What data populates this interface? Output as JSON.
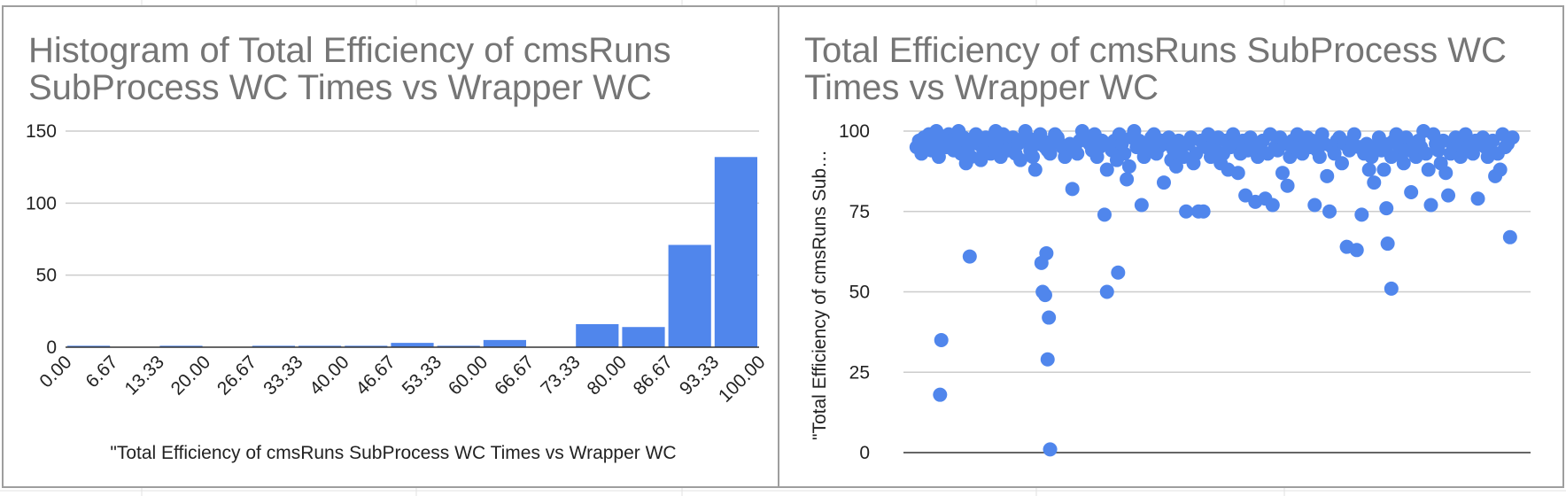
{
  "chart_data": [
    {
      "type": "bar",
      "title": "Histogram of Total Efficiency of cmsRuns SubProcess WC Times vs Wrapper WC",
      "xlabel": "\"Total Efficiency of cmsRuns SubProcess WC Times vs Wrapper WC",
      "ylabel": "",
      "ylim": [
        0,
        150
      ],
      "yticks": [
        "0",
        "50",
        "100",
        "150"
      ],
      "x_tick_labels": [
        "0.00",
        "6.67",
        "13.33",
        "20.00",
        "26.67",
        "33.33",
        "40.00",
        "46.67",
        "53.33",
        "60.00",
        "66.67",
        "73.33",
        "80.00",
        "86.67",
        "93.33",
        "100.00"
      ],
      "values": [
        1,
        0,
        1,
        0,
        1,
        1,
        1,
        3,
        1,
        5,
        0,
        16,
        14,
        71,
        132
      ],
      "bar_color": "#5086ec",
      "grid": true
    },
    {
      "type": "scatter",
      "title": "Total Efficiency of cmsRuns SubProcess WC Times vs Wrapper WC",
      "xlabel": "",
      "ylabel": "\"Total Efficiency of cmsRuns Sub…",
      "ylim": [
        0,
        100
      ],
      "yticks": [
        "0",
        "25",
        "50",
        "75",
        "100"
      ],
      "point_color": "#5086ec",
      "grid": true,
      "y": [
        95,
        97,
        93,
        98,
        96,
        99,
        94,
        97,
        100,
        92,
        96,
        98,
        95,
        99,
        97,
        94,
        96,
        100,
        93,
        98,
        90,
        95,
        92,
        97,
        99,
        96,
        91,
        94,
        98,
        95,
        93,
        97,
        100,
        96,
        92,
        99,
        95,
        94,
        97,
        98,
        93,
        96,
        91,
        97,
        100,
        98,
        94,
        92,
        88,
        96,
        99,
        97,
        95,
        94,
        93,
        97,
        99,
        98,
        96,
        95,
        92,
        94,
        96,
        82,
        95,
        93,
        97,
        100,
        98,
        97,
        96,
        94,
        99,
        92,
        95,
        97,
        74,
        88,
        96,
        94,
        97,
        91,
        99,
        96,
        93,
        85,
        89,
        98,
        100,
        95,
        97,
        77,
        92,
        96,
        94,
        98,
        99,
        93,
        95,
        97,
        84,
        96,
        98,
        91,
        94,
        89,
        97,
        95,
        92,
        75,
        96,
        98,
        90,
        93,
        75,
        97,
        75,
        95,
        99,
        92,
        96,
        94,
        98,
        90,
        93,
        97,
        88,
        95,
        99,
        96,
        87,
        93,
        97,
        80,
        94,
        98,
        96,
        78,
        92,
        95,
        97,
        79,
        93,
        99,
        77,
        95,
        94,
        98,
        87,
        96,
        83,
        92,
        97,
        95,
        99,
        94,
        93,
        96,
        98,
        95,
        97,
        77,
        94,
        92,
        99,
        96,
        86,
        75,
        95,
        93,
        97,
        98,
        90,
        96,
        64,
        94,
        97,
        99,
        63,
        95,
        74,
        93,
        96,
        88,
        92,
        84,
        95,
        98,
        94,
        88,
        76,
        96,
        92,
        97,
        99,
        93,
        95,
        90,
        98,
        94,
        81,
        96,
        92,
        97,
        95,
        100,
        93,
        88,
        77,
        99,
        96,
        94,
        90,
        97,
        87,
        80,
        93,
        95,
        98,
        96,
        92,
        97,
        99,
        95,
        94,
        93,
        97,
        79,
        96,
        98,
        95,
        92,
        94,
        97,
        86,
        93,
        88,
        99,
        95,
        96,
        67,
        98,
        61,
        35,
        18,
        59,
        50,
        49,
        62,
        42,
        29,
        1,
        50,
        56,
        65,
        51
      ],
      "x": [
        2,
        4,
        6,
        8,
        10,
        12,
        14,
        16,
        18,
        20,
        22,
        24,
        26,
        28,
        30,
        32,
        34,
        36,
        38,
        40,
        42,
        44,
        46,
        48,
        50,
        52,
        54,
        56,
        58,
        60,
        62,
        64,
        66,
        68,
        70,
        72,
        74,
        76,
        78,
        80,
        82,
        84,
        86,
        88,
        90,
        92,
        94,
        96,
        98,
        100,
        102,
        104,
        106,
        108,
        110,
        112,
        114,
        116,
        118,
        120,
        122,
        124,
        126,
        128,
        130,
        132,
        134,
        136,
        138,
        140,
        142,
        144,
        146,
        148,
        150,
        152,
        154,
        156,
        158,
        160,
        162,
        164,
        166,
        168,
        170,
        172,
        174,
        176,
        178,
        180,
        182,
        184,
        186,
        188,
        190,
        192,
        194,
        196,
        198,
        200,
        202,
        204,
        206,
        208,
        210,
        212,
        214,
        216,
        218,
        220,
        222,
        224,
        226,
        228,
        230,
        232,
        234,
        236,
        238,
        240,
        242,
        244,
        246,
        248,
        250,
        252,
        254,
        256,
        258,
        260,
        262,
        264,
        266,
        268,
        270,
        272,
        274,
        276,
        278,
        280,
        282,
        284,
        286,
        288,
        290,
        292,
        294,
        296,
        298,
        300,
        302,
        304,
        306,
        308,
        310,
        312,
        314,
        316,
        318,
        320,
        322,
        324,
        326,
        328,
        330,
        332,
        334,
        336,
        338,
        340,
        342,
        344,
        346,
        348,
        350,
        352,
        354,
        356,
        358,
        360,
        362,
        364,
        366,
        368,
        370,
        372,
        374,
        376,
        378,
        380,
        382,
        384,
        386,
        388,
        390,
        392,
        394,
        396,
        398,
        400,
        402,
        404,
        406,
        408,
        410,
        412,
        414,
        416,
        418,
        420,
        422,
        424,
        426,
        428,
        430,
        432,
        434,
        436,
        438,
        440,
        442,
        444,
        446,
        448,
        450,
        452,
        454,
        456,
        458,
        460,
        462,
        464,
        466,
        468,
        470,
        472,
        474,
        476,
        478,
        480,
        482,
        484,
        45,
        22,
        21,
        103,
        104,
        106,
        107,
        109,
        108,
        110,
        156,
        165,
        383,
        386
      ]
    }
  ]
}
